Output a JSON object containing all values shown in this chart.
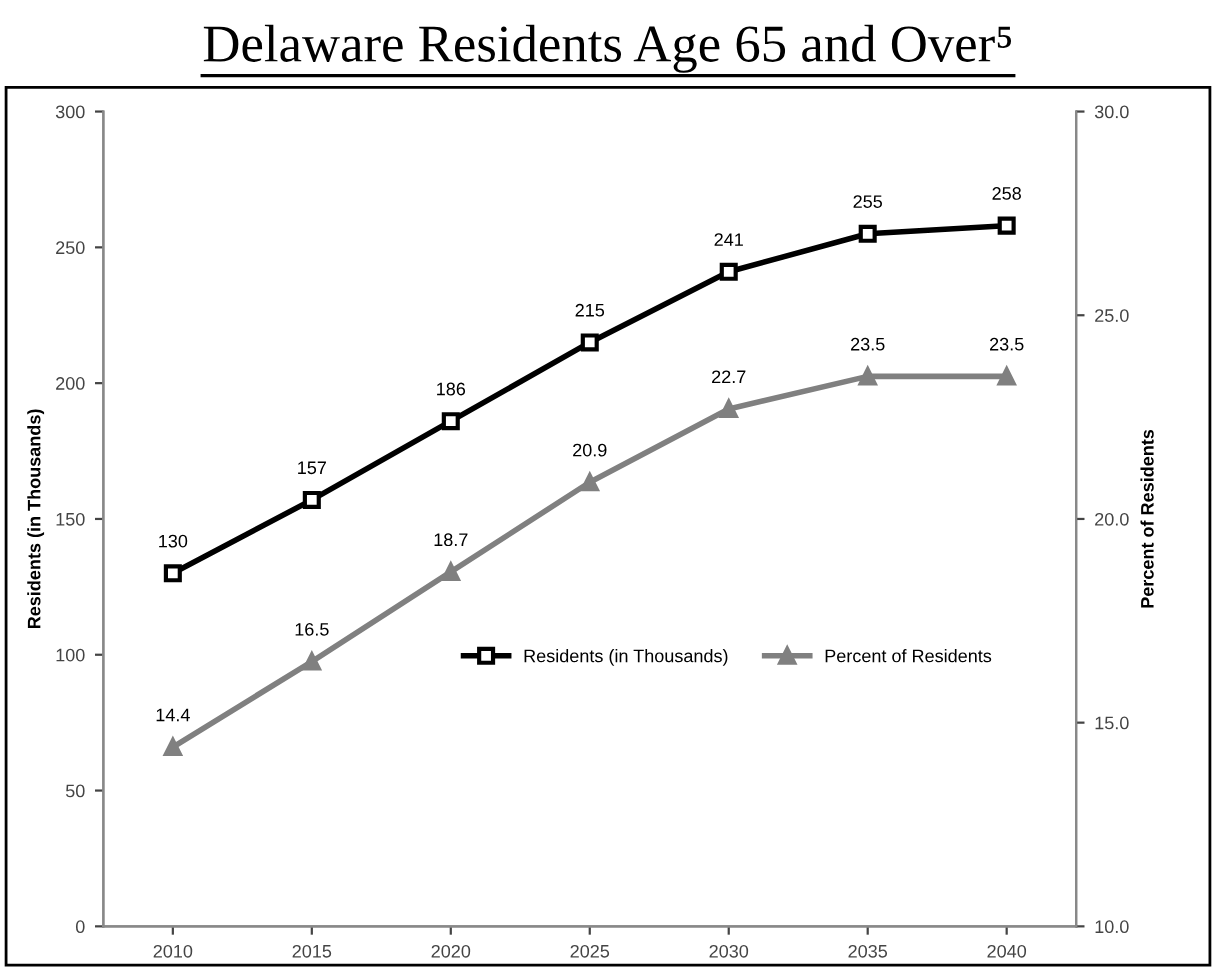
{
  "chart_data": {
    "type": "line",
    "title": "Delaware Residents Age 65 and Over⁵",
    "ylabel": "Residents (in Thousands)",
    "y2label": "Percent of Residents",
    "categories": [
      "2010",
      "2015",
      "2020",
      "2025",
      "2030",
      "2035",
      "2040"
    ],
    "series": [
      {
        "name": "Residents (in Thousands)",
        "color": "#000000",
        "marker": "square",
        "values": [
          130,
          157,
          186,
          215,
          241,
          255,
          258
        ]
      },
      {
        "name": "Percent of Residents",
        "color": "#808080",
        "marker": "triangle",
        "axis": "y2",
        "values": [
          14.4,
          16.5,
          18.7,
          20.9,
          22.7,
          23.5,
          23.5
        ]
      }
    ],
    "ylim": [
      0,
      300
    ],
    "yticks": [
      0,
      50,
      100,
      150,
      200,
      250,
      300
    ],
    "y2lim": [
      10,
      30
    ],
    "y2ticks": [
      {
        "value": 10,
        "label": "10.0"
      },
      {
        "value": 15,
        "label": "15.0"
      },
      {
        "value": 20,
        "label": "20.0"
      },
      {
        "value": 25,
        "label": "25.0"
      },
      {
        "value": 30,
        "label": "30.0"
      }
    ],
    "data_labels": true,
    "legend": "right",
    "grid": false,
    "line_style": "solid"
  }
}
